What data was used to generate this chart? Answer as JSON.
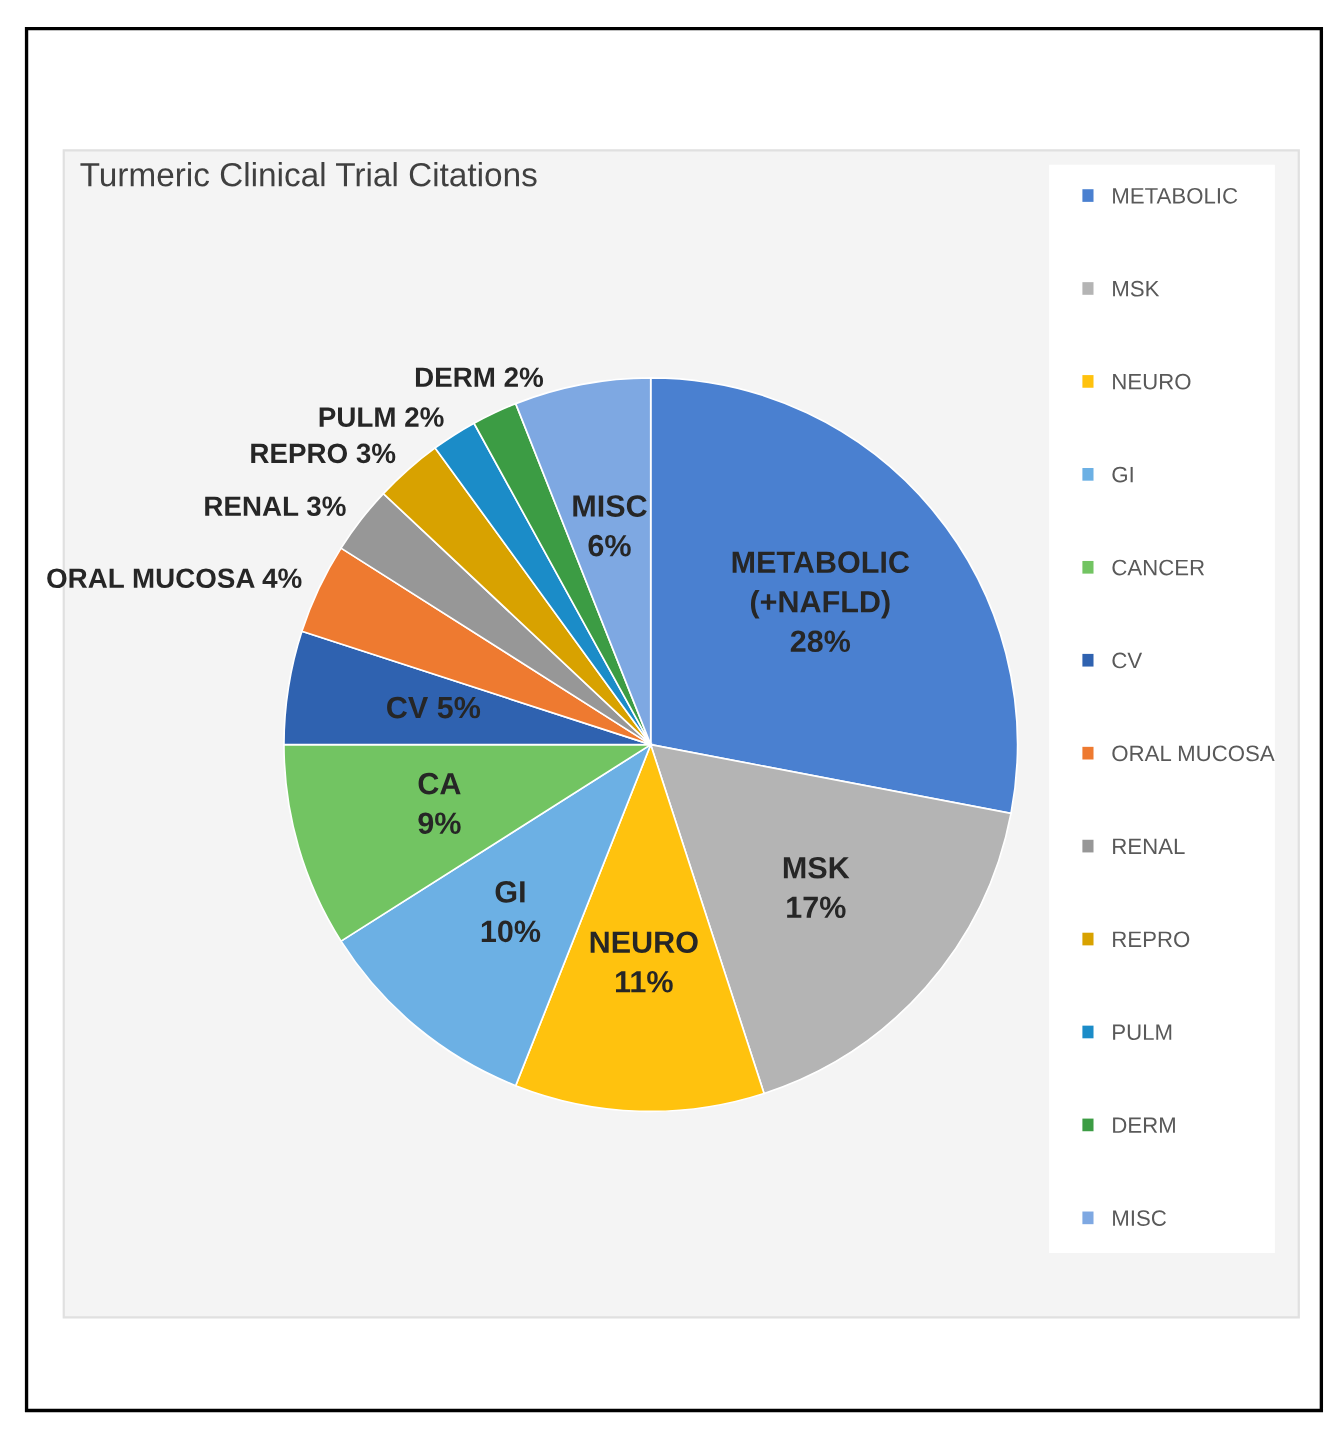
{
  "chart_data": {
    "type": "pie",
    "title": "Turmeric Clinical Trial Citations",
    "categories": [
      "METABOLIC",
      "MSK",
      "NEURO",
      "GI",
      "CANCER",
      "CV",
      "ORAL MUCOSA",
      "RENAL",
      "REPRO",
      "PULM",
      "DERM",
      "MISC"
    ],
    "values": [
      28,
      17,
      11,
      10,
      9,
      5,
      4,
      3,
      3,
      2,
      2,
      6
    ],
    "colors": [
      "#4a80d0",
      "#b4b4b4",
      "#ffc20e",
      "#6cb0e4",
      "#72c462",
      "#2f62b0",
      "#ee7a30",
      "#979797",
      "#d8a200",
      "#1b8cc8",
      "#3c9c44",
      "#7ea8e2"
    ],
    "value_labels": [
      "METABOLIC\n(+NAFLD)\n28%",
      "MSK\n17%",
      "NEURO\n11%",
      "GI\n10%",
      "CA\n9%",
      "CV 5%",
      "ORAL MUCOSA 4%",
      "RENAL 3%",
      "REPRO 3%",
      "PULM 2%",
      "DERM 2%",
      "MISC\n6%"
    ],
    "legend": "right"
  }
}
